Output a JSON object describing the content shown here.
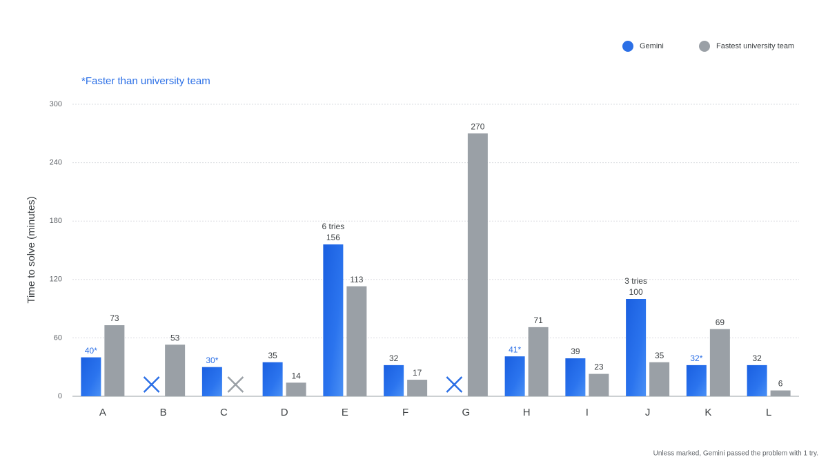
{
  "chart_data": {
    "type": "bar",
    "y_label": "Time to solve (minutes)",
    "note": "*Faster than university team",
    "footnote": "Unless marked, Gemini passed the problem with 1 try.",
    "categories": [
      "A",
      "B",
      "C",
      "D",
      "E",
      "F",
      "G",
      "H",
      "I",
      "J",
      "K",
      "L"
    ],
    "series": [
      {
        "name": "Gemini",
        "color": "#2b6fe6",
        "values": [
          40,
          null,
          30,
          35,
          156,
          32,
          null,
          41,
          39,
          100,
          32,
          32
        ],
        "value_labels": [
          "40*",
          null,
          "30*",
          null,
          null,
          null,
          null,
          "41*",
          null,
          null,
          "32*",
          null
        ]
      },
      {
        "name": "Fastest university team",
        "color": "#9aa0a6",
        "values": [
          73,
          53,
          null,
          14,
          113,
          17,
          270,
          71,
          23,
          35,
          69,
          6
        ]
      }
    ],
    "annotations": [
      {
        "text": "6 tries",
        "category": "E"
      },
      {
        "text": "3 tries",
        "category": "J"
      }
    ],
    "ylim": [
      0,
      300
    ],
    "yticks": [
      0,
      60,
      120,
      180,
      240,
      300
    ],
    "grid": true
  }
}
